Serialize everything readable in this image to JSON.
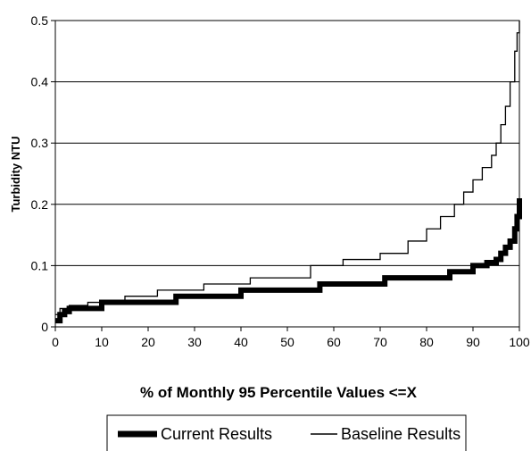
{
  "chart_data": {
    "type": "line",
    "title": "",
    "xlabel": "% of Monthly 95 Percentile Values <=X",
    "ylabel": "Turbidity NTU",
    "xlim": [
      0,
      100
    ],
    "ylim": [
      0,
      0.5
    ],
    "x_ticks": [
      "0",
      "10",
      "20",
      "30",
      "40",
      "50",
      "60",
      "70",
      "80",
      "90",
      "100"
    ],
    "y_ticks": [
      "0",
      "0.1",
      "0.2",
      "0.3",
      "0.4",
      "0.5"
    ],
    "grid": "horizontal",
    "legend_position": "bottom",
    "series": [
      {
        "name": "Current Results",
        "style": "thick",
        "color": "#000000",
        "x": [
          0,
          1,
          2,
          3,
          10,
          26,
          40,
          57,
          71,
          85,
          90,
          93,
          95,
          96,
          97,
          98,
          99,
          99.5,
          100
        ],
        "y": [
          0.01,
          0.02,
          0.025,
          0.03,
          0.04,
          0.05,
          0.06,
          0.07,
          0.08,
          0.09,
          0.1,
          0.105,
          0.11,
          0.12,
          0.13,
          0.14,
          0.16,
          0.18,
          0.21
        ]
      },
      {
        "name": "Baseline Results",
        "style": "thin",
        "color": "#000000",
        "x": [
          0,
          1,
          3,
          7,
          15,
          22,
          32,
          42,
          55,
          62,
          70,
          76,
          80,
          83,
          86,
          88,
          90,
          92,
          94,
          95,
          96,
          97,
          98,
          99,
          99.5,
          100
        ],
        "y": [
          0.02,
          0.03,
          0.035,
          0.04,
          0.05,
          0.06,
          0.07,
          0.08,
          0.1,
          0.11,
          0.12,
          0.14,
          0.16,
          0.18,
          0.2,
          0.22,
          0.24,
          0.26,
          0.28,
          0.3,
          0.33,
          0.36,
          0.4,
          0.45,
          0.48,
          0.5
        ]
      }
    ]
  }
}
